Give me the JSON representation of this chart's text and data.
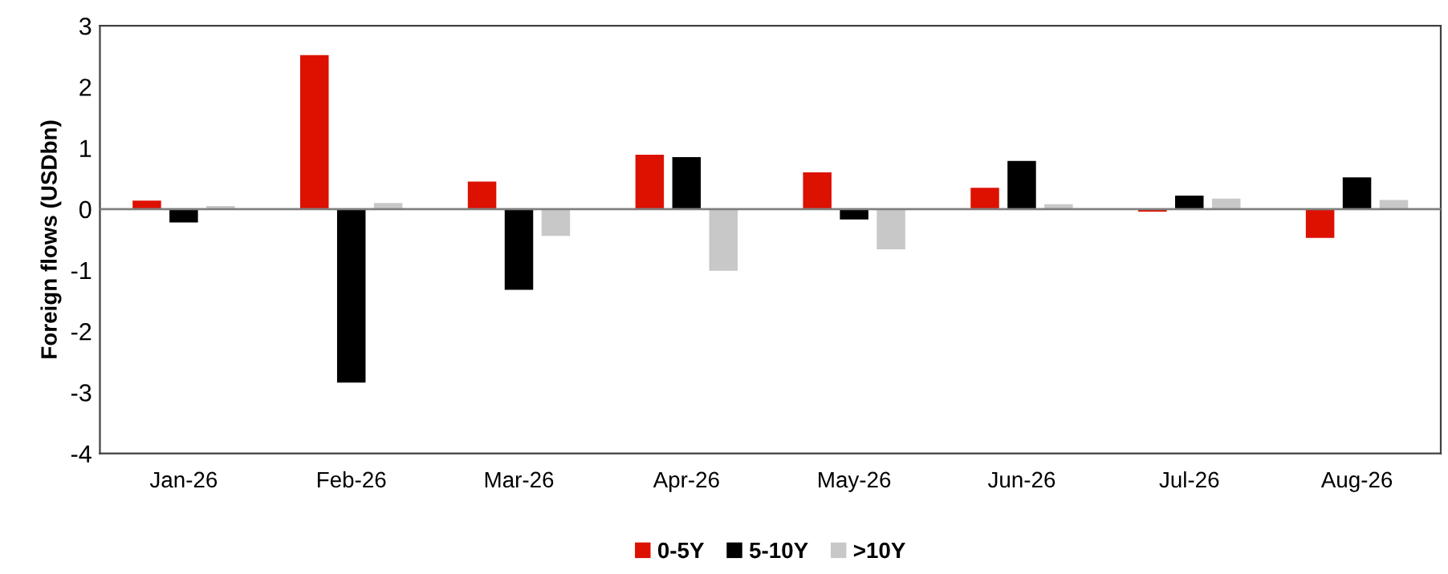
{
  "chart_data": {
    "type": "bar",
    "ylabel": "Foreign flows (USDbn)",
    "categories": [
      "Jan-26",
      "Feb-26",
      "Mar-26",
      "Apr-26",
      "May-26",
      "Jun-26",
      "Jul-26",
      "Aug-26"
    ],
    "series": [
      {
        "name": "0-5Y",
        "color": "#dd1100",
        "values": [
          0.14,
          2.52,
          0.45,
          0.89,
          0.6,
          0.35,
          -0.04,
          -0.47
        ]
      },
      {
        "name": "5-10Y",
        "color": "#000000",
        "values": [
          -0.22,
          -2.84,
          -1.32,
          0.85,
          -0.17,
          0.79,
          0.22,
          0.52
        ]
      },
      {
        "name": ">10Y",
        "color": "#c8c8c8",
        "values": [
          0.05,
          0.1,
          -0.44,
          -1.01,
          -0.66,
          0.08,
          0.17,
          0.15
        ]
      }
    ],
    "ylim": [
      -4,
      3
    ],
    "yticks": [
      -4,
      -3,
      -2,
      -1,
      0,
      1,
      2,
      3
    ],
    "grid": false,
    "legend": "bottom",
    "ref_lines": [
      {
        "axis": "y",
        "value": 0,
        "color": "#808080"
      }
    ]
  }
}
